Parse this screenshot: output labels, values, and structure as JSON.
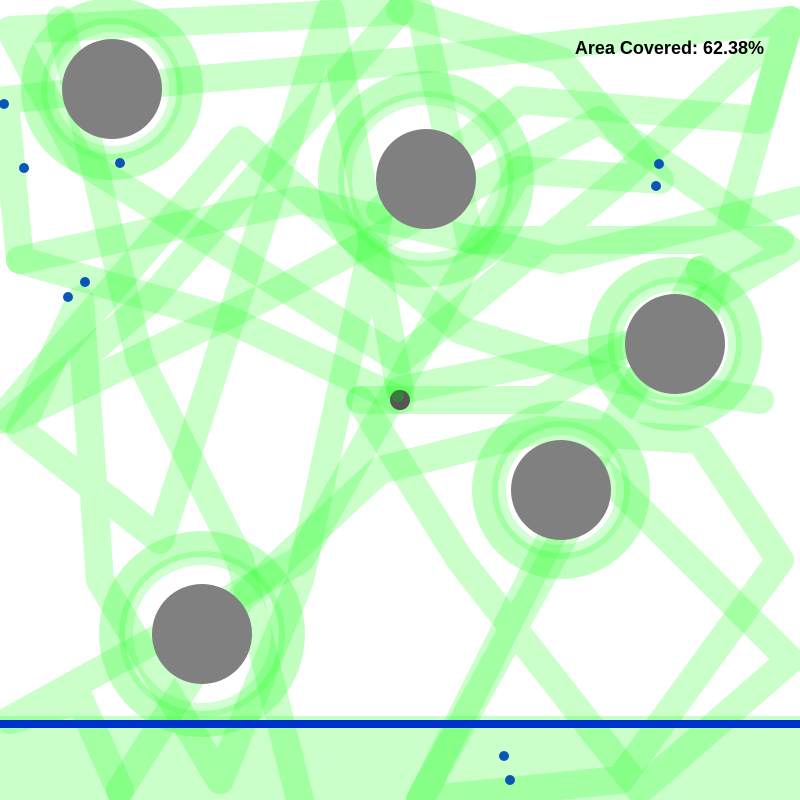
{
  "hud": {
    "coverage_label": "Area Covered: 62.38%",
    "coverage_percent": 62.38
  },
  "colors": {
    "background": "#ffffff",
    "trail": "#33ff33",
    "obstacle": "#808080",
    "boundary": "#0033cc",
    "marker": "#0b55b8",
    "robot": "#555555"
  },
  "icons": {
    "obstacle": "obstacle-circle-icon",
    "robot": "robot-icon",
    "marker": "waypoint-dot-icon"
  }
}
